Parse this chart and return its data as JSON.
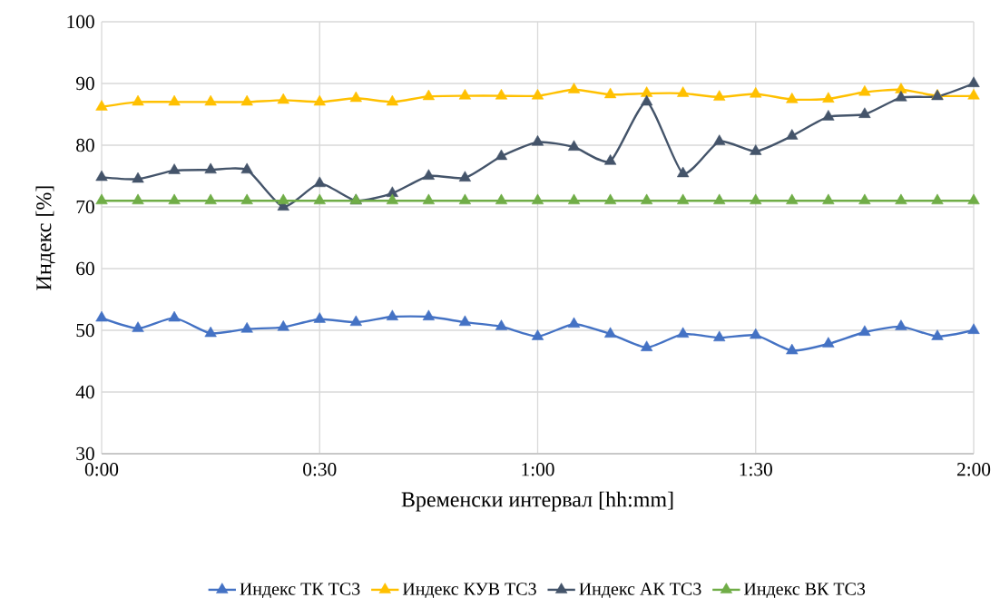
{
  "chart_data": {
    "type": "line",
    "xlabel": "Временски интервал [hh:mm]",
    "ylabel": "Индекс [%]",
    "x": [
      0,
      0.0833,
      0.1667,
      0.25,
      0.3333,
      0.4167,
      0.5,
      0.5833,
      0.6667,
      0.75,
      0.8333,
      0.9167,
      1,
      1.0833,
      1.1667,
      1.25,
      1.3333,
      1.4167,
      1.5,
      1.5833,
      1.6667,
      1.75,
      1.8333,
      1.9167,
      2
    ],
    "series": [
      {
        "name": "Индекс ТК  ТС3",
        "color": "#4472c4",
        "values": [
          52,
          50.3,
          52,
          49.5,
          50.2,
          50.5,
          51.8,
          51.3,
          52.2,
          52.2,
          51.3,
          50.6,
          49,
          51,
          49.4,
          47.2,
          49.4,
          48.8,
          49.2,
          46.7,
          47.8,
          49.7,
          50.6,
          49,
          50
        ]
      },
      {
        "name": "Индекс КУВ ТС3",
        "color": "#ffc000",
        "values": [
          86.2,
          87,
          87,
          87,
          87,
          87.3,
          87,
          87.6,
          87,
          87.9,
          88,
          88,
          88,
          89,
          88.2,
          88.4,
          88.4,
          87.8,
          88.3,
          87.4,
          87.5,
          88.6,
          89,
          88,
          88
        ]
      },
      {
        "name": "Индекс АК ТС3",
        "color": "#44546a",
        "values": [
          74.8,
          74.5,
          75.9,
          76,
          76,
          70,
          73.8,
          71,
          72.2,
          75,
          74.7,
          78.2,
          80.5,
          79.7,
          77.4,
          87,
          75.4,
          80.6,
          79,
          81.5,
          84.6,
          85,
          87.7,
          87.9,
          90
        ]
      },
      {
        "name": "Индекс ВК ТС3",
        "color": "#70ad47",
        "values": [
          71,
          71,
          71,
          71,
          71,
          71,
          71,
          71,
          71,
          71,
          71,
          71,
          71,
          71,
          71,
          71,
          71,
          71,
          71,
          71,
          71,
          71,
          71,
          71,
          71
        ]
      }
    ],
    "xlim": [
      0,
      2
    ],
    "xticks": [
      {
        "value": 0,
        "label": "0:00"
      },
      {
        "value": 0.5,
        "label": "0:30"
      },
      {
        "value": 1,
        "label": "1:00"
      },
      {
        "value": 1.5,
        "label": "1:30"
      },
      {
        "value": 2,
        "label": "2:00"
      }
    ],
    "ylim": [
      30,
      100
    ],
    "yticks": [
      30,
      40,
      50,
      60,
      70,
      80,
      90,
      100
    ],
    "grid": true,
    "legend": "bottom",
    "marker": "triangle",
    "line_style": "solid"
  }
}
